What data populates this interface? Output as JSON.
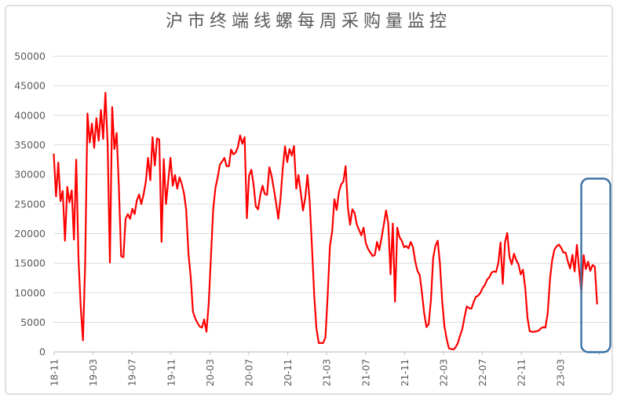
{
  "chart": {
    "title": "沪市终端线螺每周采购量监控",
    "colors": {
      "line": "#FE0000",
      "highlight_box": "#3A72A4",
      "grid": "#DADADA",
      "axis": "#C0C0C0",
      "text": "#595959",
      "border": "#D6D6D6",
      "background": "#FFFFFF"
    }
  },
  "chart_data": {
    "type": "line",
    "title": "沪市终端线螺每周采购量监控",
    "xlabel": "",
    "ylabel": "",
    "ylim": [
      0,
      50000
    ],
    "y_tick_step": 5000,
    "y_tick_labels": [
      "0",
      "5000",
      "10000",
      "15000",
      "20000",
      "25000",
      "30000",
      "35000",
      "40000",
      "45000",
      "50000"
    ],
    "x_tick_labels": [
      "18-11",
      "19-03",
      "19-07",
      "19-11",
      "20-03",
      "20-07",
      "20-11",
      "21-03",
      "21-07",
      "21-11",
      "22-03",
      "22-07",
      "22-11",
      "23-03"
    ],
    "x_unit": "week",
    "points_per_tick": 17.34,
    "grid": "horizontal",
    "legend": "none",
    "annotations": [
      {
        "shape": "rounded-rectangle-outline",
        "purpose": "highlight-most-recent-weeks",
        "color": "#3A72A4"
      }
    ],
    "values": [
      33400,
      26300,
      32000,
      25500,
      27200,
      18800,
      27900,
      25300,
      27300,
      19000,
      32500,
      15800,
      7700,
      1950,
      15000,
      40300,
      35400,
      38600,
      34500,
      39500,
      35700,
      40900,
      36000,
      43800,
      35200,
      15100,
      41400,
      34300,
      37000,
      28000,
      16200,
      16000,
      22500,
      23300,
      22500,
      24200,
      23300,
      25600,
      26600,
      25000,
      26600,
      28800,
      32800,
      29000,
      36300,
      31500,
      36100,
      35900,
      18600,
      32600,
      25000,
      29000,
      32800,
      28100,
      29900,
      27600,
      29500,
      28400,
      26800,
      24000,
      16600,
      12600,
      6800,
      5700,
      4900,
      4300,
      4100,
      5500,
      3400,
      8000,
      16000,
      24100,
      27700,
      29500,
      31650,
      32200,
      32800,
      31400,
      31400,
      34200,
      33400,
      33700,
      34600,
      36600,
      35200,
      36300,
      22600,
      29800,
      30800,
      28300,
      24600,
      24100,
      26500,
      28100,
      26700,
      26550,
      31200,
      29800,
      27600,
      25300,
      22500,
      26000,
      31000,
      34750,
      32100,
      34300,
      33200,
      34800,
      27600,
      29900,
      27000,
      23900,
      26000,
      29900,
      25500,
      17800,
      9500,
      4000,
      1500,
      1500,
      1500,
      2500,
      9500,
      17900,
      20300,
      25800,
      24000,
      27000,
      28300,
      28800,
      31400,
      24400,
      21500,
      24100,
      23500,
      21500,
      20600,
      19700,
      21000,
      18400,
      17400,
      16800,
      16200,
      16400,
      18600,
      17200,
      19300,
      21500,
      23900,
      21700,
      13100,
      21700,
      8500,
      21000,
      19400,
      18800,
      17700,
      17900,
      17500,
      18600,
      17700,
      15300,
      13700,
      13000,
      10000,
      6500,
      4200,
      4700,
      8800,
      15900,
      17900,
      18800,
      15000,
      8600,
      4400,
      2200,
      600,
      500,
      400,
      800,
      1500,
      2800,
      3900,
      5975,
      7700,
      7400,
      7300,
      8400,
      9300,
      9500,
      9960,
      10800,
      11300,
      12200,
      12600,
      13400,
      13600,
      13500,
      15000,
      18500,
      11500,
      18600,
      20100,
      16000,
      14800,
      16600,
      15500,
      14800,
      13100,
      13900,
      10800,
      5750,
      3500,
      3400,
      3400,
      3500,
      3600,
      4000,
      4200,
      4100,
      6500,
      12200,
      15500,
      17300,
      17850,
      18150,
      17600,
      16800,
      16800,
      15300,
      14100,
      16400,
      13600,
      18100,
      14000,
      10150,
      16350,
      14000,
      15250,
      13700,
      14700,
      14400,
      8150
    ]
  }
}
